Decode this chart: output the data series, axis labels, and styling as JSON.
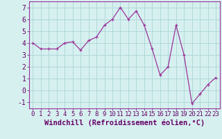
{
  "x": [
    0,
    1,
    2,
    3,
    4,
    5,
    6,
    7,
    8,
    9,
    10,
    11,
    12,
    13,
    14,
    15,
    16,
    17,
    18,
    19,
    20,
    21,
    22,
    23
  ],
  "y": [
    4.0,
    3.5,
    3.5,
    3.5,
    4.0,
    4.1,
    3.4,
    4.2,
    4.5,
    5.5,
    6.0,
    7.0,
    6.0,
    6.7,
    5.5,
    3.5,
    1.3,
    2.0,
    5.5,
    3.0,
    -1.1,
    -0.3,
    0.5,
    1.1
  ],
  "line_color": "#993399",
  "marker": "+",
  "bg_color": "#d6f0f0",
  "grid_color": "#b0d8d8",
  "xlabel": "Windchill (Refroidissement éolien,°C)",
  "xlim": [
    -0.5,
    23.5
  ],
  "ylim": [
    -1.5,
    7.5
  ],
  "yticks": [
    -1,
    0,
    1,
    2,
    3,
    4,
    5,
    6,
    7
  ],
  "xticks": [
    0,
    1,
    2,
    3,
    4,
    5,
    6,
    7,
    8,
    9,
    10,
    11,
    12,
    13,
    14,
    15,
    16,
    17,
    18,
    19,
    20,
    21,
    22,
    23
  ],
  "xlabel_fontsize": 7.5,
  "tick_fontsize": 6.5,
  "ytick_fontsize": 7,
  "line_color_hex": "#993399",
  "spine_color": "#993399",
  "label_color": "#660066"
}
